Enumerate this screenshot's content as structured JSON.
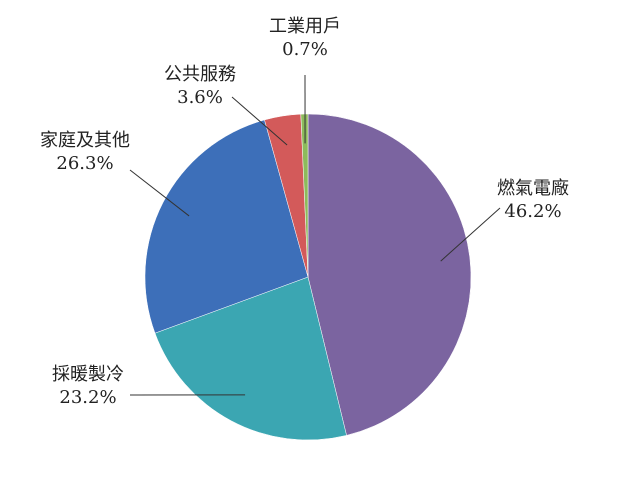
{
  "chart_data": {
    "type": "pie",
    "categories": [
      "燃氣電廠",
      "採暖製冷",
      "家庭及其他",
      "公共服務",
      "工業用戶"
    ],
    "values": [
      46.2,
      23.2,
      26.3,
      3.6,
      0.7
    ],
    "value_labels": [
      "46.2%",
      "23.2%",
      "26.3%",
      "3.6%",
      "0.7%"
    ],
    "colors": [
      "#7b64a0",
      "#3ba6b2",
      "#3d6fb9",
      "#d35a5a",
      "#8dbb5c"
    ]
  }
}
